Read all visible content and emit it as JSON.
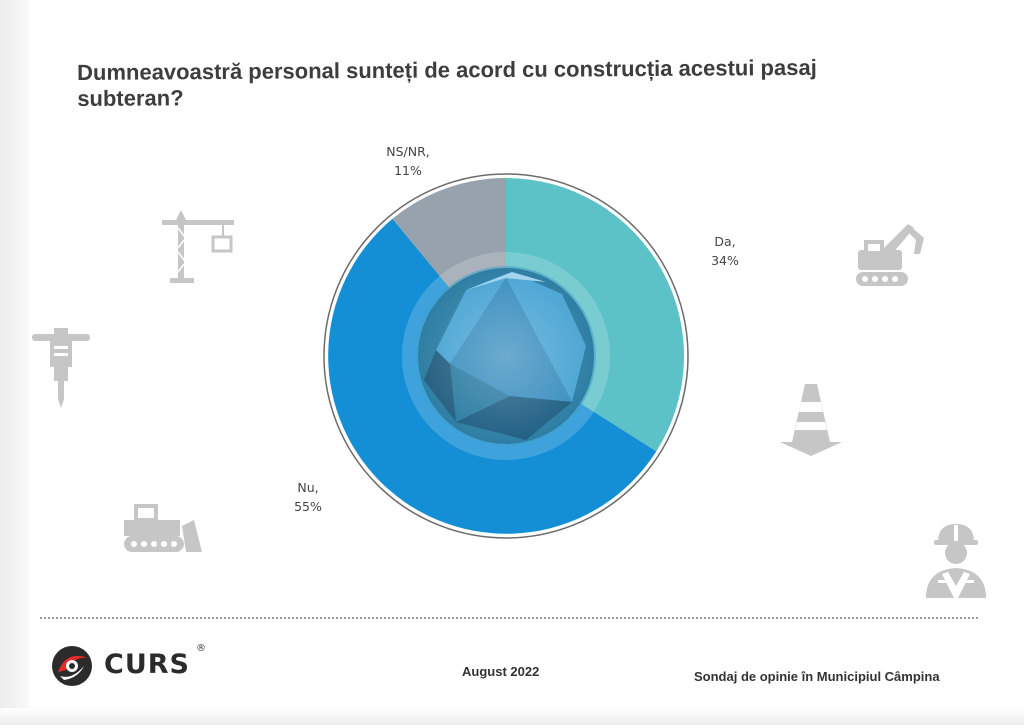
{
  "title": "Dumneavoastră personal sunteți de acord cu construcția acestui pasaj subteran?",
  "chart_data": {
    "type": "pie",
    "title": "Dumneavoastră personal sunteți de acord cu construcția acestui pasaj subteran?",
    "slices": [
      {
        "label": "Da,",
        "value": 34,
        "value_label": "34%",
        "color": "#5cc2c7"
      },
      {
        "label": "Nu,",
        "value": 55,
        "value_label": "55%",
        "color": "#148fd6"
      },
      {
        "label": "NS/NR,",
        "value": 11,
        "value_label": "11%",
        "color": "#98a2ac"
      }
    ],
    "legend": "none"
  },
  "decorations": {
    "icons": [
      "crane-icon",
      "jackhammer-icon",
      "excavator-icon",
      "traffic-cone-icon",
      "bulldozer-icon",
      "construction-worker-icon"
    ],
    "icon_color": "#c6c6c6"
  },
  "footer": {
    "logo_text": "CURS",
    "logo_registered": "®",
    "date": "August 2022",
    "survey": "Sondaj de opinie în Municipiul Câmpina"
  }
}
